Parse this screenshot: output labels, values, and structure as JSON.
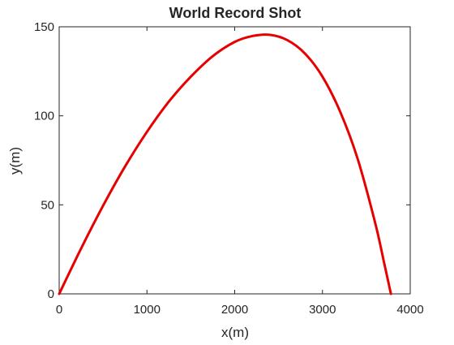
{
  "chart_data": {
    "type": "line",
    "title": "World Record Shot",
    "xlabel": "x(m)",
    "ylabel": "y(m)",
    "xlim": [
      0,
      4000
    ],
    "ylim": [
      0,
      150
    ],
    "xticks": [
      0,
      1000,
      2000,
      3000,
      4000
    ],
    "yticks": [
      0,
      50,
      100,
      150
    ],
    "xtick_labels": [
      "0",
      "1000",
      "2000",
      "3000",
      "4000"
    ],
    "ytick_labels": [
      "0",
      "50",
      "100",
      "150"
    ],
    "grid": false,
    "legend": "none",
    "colors": {
      "series": "#e60000",
      "axis": "#262626",
      "background": "#ffffff"
    },
    "series": [
      {
        "x": [
          0,
          250,
          500,
          750,
          1000,
          1250,
          1500,
          1750,
          2000,
          2200,
          2400,
          2600,
          2800,
          3000,
          3200,
          3400,
          3600,
          3700,
          3780
        ],
        "y": [
          0,
          25.5,
          49.5,
          71.5,
          91.0,
          108.0,
          122.0,
          133.5,
          141.5,
          144.8,
          145.5,
          142.5,
          135.0,
          122.0,
          102.5,
          76.0,
          40.0,
          18.0,
          0
        ]
      }
    ]
  }
}
